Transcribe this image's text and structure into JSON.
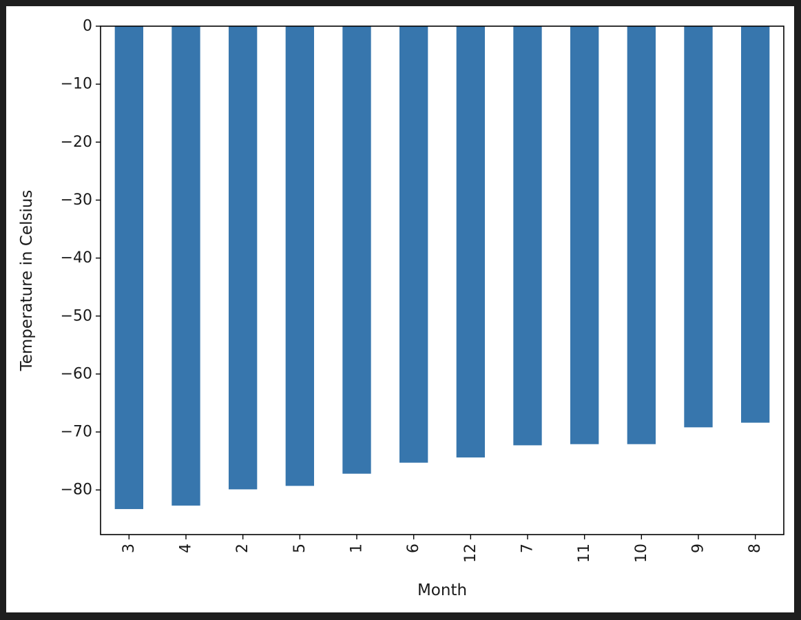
{
  "chart_data": {
    "type": "bar",
    "title": "",
    "xlabel": "Month",
    "ylabel": "Temperature in Celsius",
    "categories": [
      "3",
      "4",
      "2",
      "5",
      "1",
      "6",
      "12",
      "7",
      "11",
      "10",
      "9",
      "8"
    ],
    "values": [
      -83.3,
      -82.7,
      -79.9,
      -79.3,
      -77.2,
      -75.3,
      -74.4,
      -72.3,
      -72.1,
      -72.1,
      -69.2,
      -68.4
    ],
    "ylim": [
      -87.7,
      0
    ],
    "yticks": [
      0,
      -10,
      -20,
      -30,
      -40,
      -50,
      -60,
      -70,
      -80
    ],
    "ytick_labels": [
      "0",
      "−10",
      "−20",
      "−30",
      "−40",
      "−50",
      "−60",
      "−70",
      "−80"
    ],
    "bar_color": "#3776ad",
    "grid": false,
    "legend": false
  }
}
